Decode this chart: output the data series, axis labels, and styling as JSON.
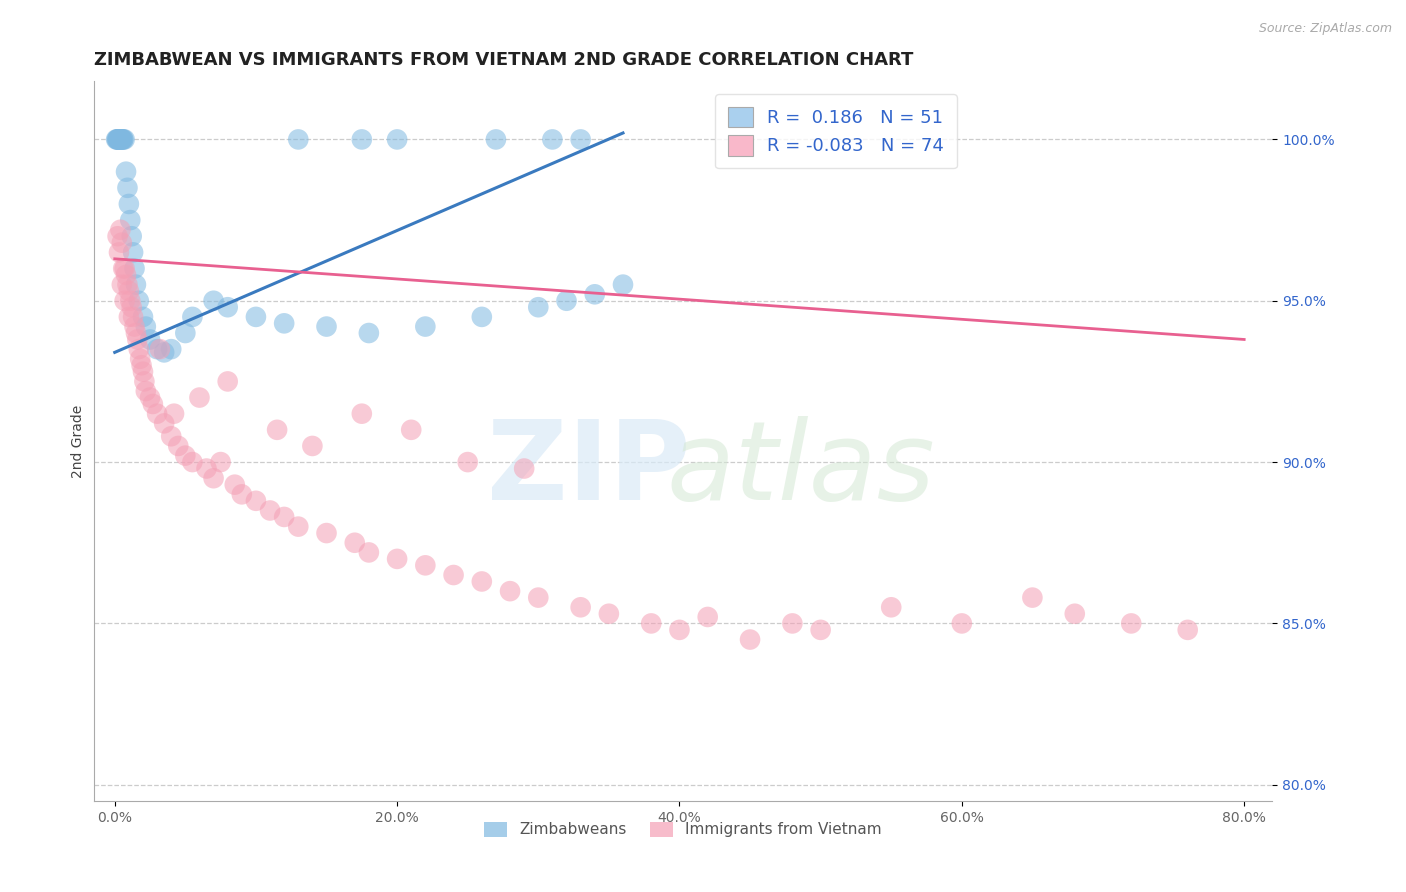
{
  "title": "ZIMBABWEAN VS IMMIGRANTS FROM VIETNAM 2ND GRADE CORRELATION CHART",
  "source": "Source: ZipAtlas.com",
  "ylabel": "2nd Grade",
  "x_label_ticks": [
    "0.0%",
    "20.0%",
    "40.0%",
    "60.0%",
    "80.0%"
  ],
  "x_tick_vals": [
    0,
    20,
    40,
    60,
    80
  ],
  "y_tick_vals": [
    80,
    85,
    90,
    95,
    100
  ],
  "y_tick_labels": [
    "80.0%",
    "85.0%",
    "90.0%",
    "95.0%",
    "100.0%"
  ],
  "xlim": [
    -1.5,
    82
  ],
  "ylim": [
    79.5,
    101.8
  ],
  "blue_R": 0.186,
  "blue_N": 51,
  "pink_R": -0.083,
  "pink_N": 74,
  "blue_color": "#7fb8e0",
  "pink_color": "#f4a0b5",
  "blue_line_color": "#3a7abf",
  "pink_line_color": "#e86090",
  "legend_text_color": "#3366cc",
  "blue_line_x0": 0,
  "blue_line_y0": 93.4,
  "blue_line_x1": 36,
  "blue_line_y1": 100.2,
  "pink_line_x0": 0,
  "pink_line_y0": 96.3,
  "pink_line_x1": 80,
  "pink_line_y1": 93.8,
  "blue_x": [
    0.1,
    0.15,
    0.2,
    0.2,
    0.25,
    0.3,
    0.3,
    0.35,
    0.4,
    0.4,
    0.5,
    0.5,
    0.5,
    0.6,
    0.6,
    0.7,
    0.8,
    0.9,
    1.0,
    1.1,
    1.2,
    1.3,
    1.4,
    1.5,
    1.7,
    2.0,
    2.2,
    2.5,
    3.0,
    3.5,
    4.0,
    5.0,
    5.5,
    7.0,
    8.0,
    10.0,
    12.0,
    15.0,
    18.0,
    22.0,
    26.0,
    30.0,
    32.0,
    34.0,
    36.0,
    13.0,
    17.5,
    20.0,
    27.0,
    31.0,
    33.0
  ],
  "blue_y": [
    100.0,
    100.0,
    100.0,
    100.0,
    100.0,
    100.0,
    100.0,
    100.0,
    100.0,
    100.0,
    100.0,
    100.0,
    100.0,
    100.0,
    100.0,
    100.0,
    99.0,
    98.5,
    98.0,
    97.5,
    97.0,
    96.5,
    96.0,
    95.5,
    95.0,
    94.5,
    94.2,
    93.8,
    93.5,
    93.4,
    93.5,
    94.0,
    94.5,
    95.0,
    94.8,
    94.5,
    94.3,
    94.2,
    94.0,
    94.2,
    94.5,
    94.8,
    95.0,
    95.2,
    95.5,
    100.0,
    100.0,
    100.0,
    100.0,
    100.0,
    100.0
  ],
  "pink_x": [
    0.2,
    0.3,
    0.4,
    0.5,
    0.5,
    0.6,
    0.7,
    0.7,
    0.8,
    0.9,
    1.0,
    1.0,
    1.1,
    1.2,
    1.3,
    1.4,
    1.5,
    1.6,
    1.7,
    1.8,
    1.9,
    2.0,
    2.1,
    2.2,
    2.5,
    2.7,
    3.0,
    3.5,
    4.0,
    4.5,
    5.0,
    5.5,
    6.5,
    7.0,
    7.5,
    8.5,
    9.0,
    10.0,
    11.0,
    12.0,
    13.0,
    15.0,
    17.0,
    18.0,
    20.0,
    22.0,
    24.0,
    26.0,
    28.0,
    30.0,
    33.0,
    35.0,
    38.0,
    40.0,
    42.0,
    45.0,
    48.0,
    50.0,
    55.0,
    60.0,
    65.0,
    68.0,
    72.0,
    76.0,
    3.2,
    4.2,
    6.0,
    8.0,
    11.5,
    14.0,
    17.5,
    21.0,
    25.0,
    29.0
  ],
  "pink_y": [
    97.0,
    96.5,
    97.2,
    96.8,
    95.5,
    96.0,
    96.0,
    95.0,
    95.8,
    95.5,
    95.3,
    94.5,
    95.0,
    94.8,
    94.5,
    94.2,
    94.0,
    93.8,
    93.5,
    93.2,
    93.0,
    92.8,
    92.5,
    92.2,
    92.0,
    91.8,
    91.5,
    91.2,
    90.8,
    90.5,
    90.2,
    90.0,
    89.8,
    89.5,
    90.0,
    89.3,
    89.0,
    88.8,
    88.5,
    88.3,
    88.0,
    87.8,
    87.5,
    87.2,
    87.0,
    86.8,
    86.5,
    86.3,
    86.0,
    85.8,
    85.5,
    85.3,
    85.0,
    84.8,
    85.2,
    84.5,
    85.0,
    84.8,
    85.5,
    85.0,
    85.8,
    85.3,
    85.0,
    84.8,
    93.5,
    91.5,
    92.0,
    92.5,
    91.0,
    90.5,
    91.5,
    91.0,
    90.0,
    89.8
  ]
}
